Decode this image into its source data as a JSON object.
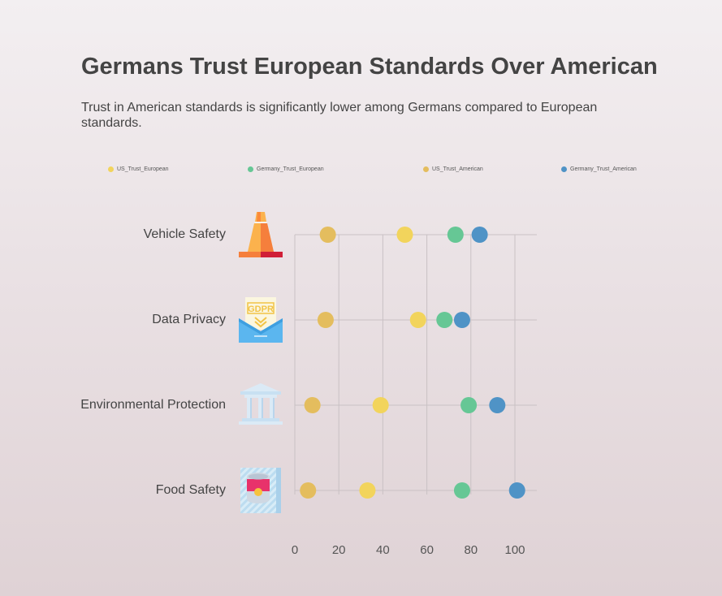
{
  "header": {
    "title": "Germans Trust European Standards Over American",
    "subtitle": "Trust in American standards is significantly lower among Germans compared to European standards."
  },
  "legend": {
    "items": [
      {
        "label": "US_Trust_European",
        "color": "#f2d45c"
      },
      {
        "label": "Germany_Trust_European",
        "color": "#66c795"
      },
      {
        "label": "US_Trust_American",
        "color": "#e4bd5e"
      },
      {
        "label": "Germany_Trust_American",
        "color": "#4f93c6"
      }
    ]
  },
  "icons": {
    "Vehicle Safety": "traffic-cone-icon",
    "Data Privacy": "gdpr-envelope-icon",
    "Environmental Protection": "government-building-icon",
    "Food Safety": "canned-food-icon"
  },
  "chart_data": {
    "type": "scatter",
    "title": "Germans Trust European Standards Over American",
    "subtitle": "Trust in American standards is significantly lower among Germans compared to European standards.",
    "categories": [
      "Vehicle Safety",
      "Data Privacy",
      "Environmental Protection",
      "Food Safety"
    ],
    "series": [
      {
        "name": "US_Trust_European",
        "color": "#f2d45c",
        "values": [
          50,
          56,
          39,
          33
        ]
      },
      {
        "name": "Germany_Trust_European",
        "color": "#66c795",
        "values": [
          73,
          68,
          79,
          76
        ]
      },
      {
        "name": "US_Trust_American",
        "color": "#e4bd5e",
        "values": [
          15,
          14,
          8,
          6
        ]
      },
      {
        "name": "Germany_Trust_American",
        "color": "#4f93c6",
        "values": [
          84,
          76,
          92,
          101
        ]
      }
    ],
    "xlim": [
      0,
      110
    ],
    "xticks": [
      0,
      20,
      40,
      60,
      80,
      100
    ],
    "xlabel": "",
    "ylabel": "",
    "grid": true,
    "legend_position": "top"
  }
}
